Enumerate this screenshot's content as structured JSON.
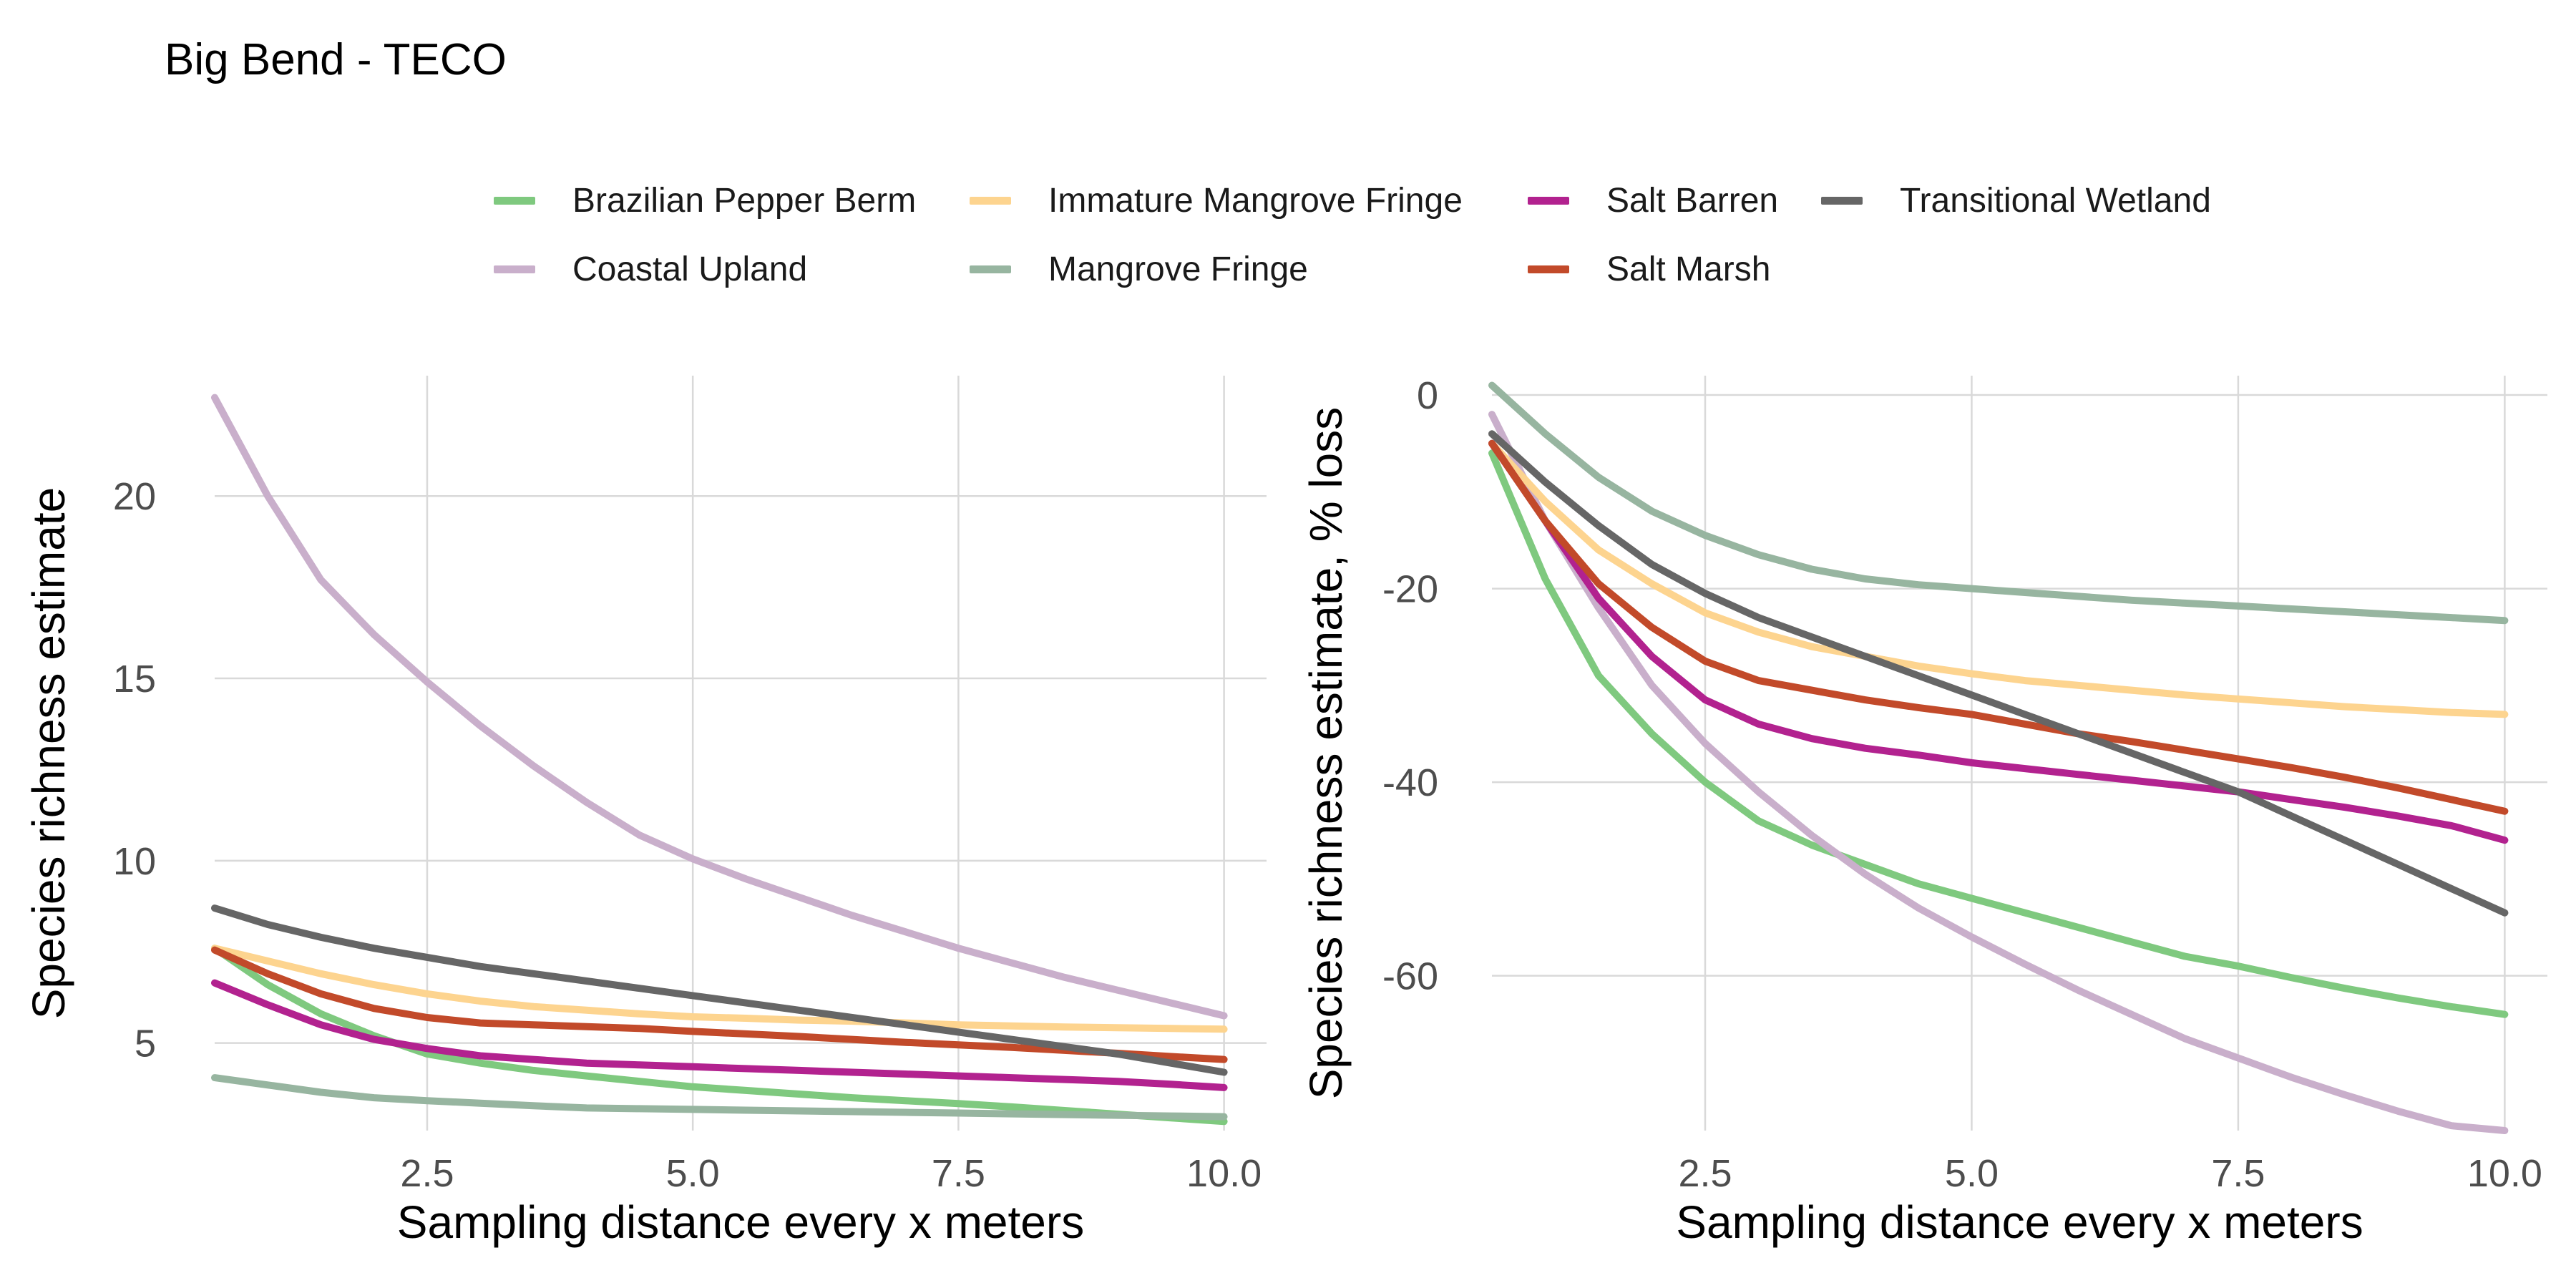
{
  "title": "Big Bend - TECO",
  "legend": [
    {
      "name": "Brazilian Pepper Berm",
      "color": "#7fc97f"
    },
    {
      "name": "Coastal Upland",
      "color": "#c9afcb"
    },
    {
      "name": "Immature Mangrove Fringe",
      "color": "#fdd48f"
    },
    {
      "name": "Mangrove Fringe",
      "color": "#97b5a0"
    },
    {
      "name": "Salt Barren",
      "color": "#b2228f"
    },
    {
      "name": "Salt Marsh",
      "color": "#c24a2a"
    },
    {
      "name": "Transitional Wetland",
      "color": "#666666"
    }
  ],
  "chart_data": [
    {
      "type": "line",
      "title": "",
      "xlabel": "Sampling distance every x meters",
      "ylabel": "Species richness estimate",
      "xlim": [
        0.5,
        10.4
      ],
      "ylim": [
        2.6,
        23.3
      ],
      "xticks": [
        2.5,
        5.0,
        7.5,
        10.0
      ],
      "xtick_labels": [
        "2.5",
        "5.0",
        "7.5",
        "10.0"
      ],
      "yticks": [
        5,
        10,
        15,
        20
      ],
      "ytick_labels": [
        "5",
        "10",
        "15",
        "20"
      ],
      "grid": true,
      "x": [
        0.5,
        1.0,
        1.5,
        2.0,
        2.5,
        3.0,
        3.5,
        4.0,
        4.5,
        5.0,
        5.5,
        6.0,
        6.5,
        7.0,
        7.5,
        8.0,
        8.5,
        9.0,
        9.5,
        10.0
      ],
      "series": [
        {
          "name": "Brazilian Pepper Berm",
          "color": "#7fc97f",
          "values": [
            7.6,
            6.6,
            5.8,
            5.2,
            4.7,
            4.45,
            4.25,
            4.1,
            3.95,
            3.8,
            3.7,
            3.6,
            3.5,
            3.42,
            3.34,
            3.25,
            3.15,
            3.05,
            2.95,
            2.85
          ]
        },
        {
          "name": "Coastal Upland",
          "color": "#c9afcb",
          "values": [
            22.7,
            20.0,
            17.7,
            16.2,
            14.9,
            13.7,
            12.6,
            11.6,
            10.7,
            10.05,
            9.5,
            9.0,
            8.5,
            8.05,
            7.6,
            7.2,
            6.8,
            6.45,
            6.1,
            5.75
          ]
        },
        {
          "name": "Immature Mangrove Fringe",
          "color": "#fdd48f",
          "values": [
            7.6,
            7.25,
            6.9,
            6.6,
            6.35,
            6.15,
            6.0,
            5.9,
            5.8,
            5.72,
            5.68,
            5.63,
            5.6,
            5.55,
            5.5,
            5.47,
            5.44,
            5.42,
            5.4,
            5.38
          ]
        },
        {
          "name": "Mangrove Fringe",
          "color": "#97b5a0",
          "values": [
            4.05,
            3.85,
            3.65,
            3.5,
            3.42,
            3.35,
            3.28,
            3.22,
            3.2,
            3.18,
            3.16,
            3.14,
            3.12,
            3.1,
            3.08,
            3.06,
            3.04,
            3.02,
            3.0,
            2.98
          ]
        },
        {
          "name": "Salt Barren",
          "color": "#b2228f",
          "values": [
            6.65,
            6.05,
            5.5,
            5.1,
            4.85,
            4.65,
            4.55,
            4.45,
            4.4,
            4.35,
            4.3,
            4.25,
            4.2,
            4.15,
            4.1,
            4.05,
            4.0,
            3.95,
            3.87,
            3.78
          ]
        },
        {
          "name": "Salt Marsh",
          "color": "#c24a2a",
          "values": [
            7.55,
            6.9,
            6.35,
            5.95,
            5.7,
            5.55,
            5.5,
            5.45,
            5.4,
            5.32,
            5.25,
            5.18,
            5.1,
            5.02,
            4.95,
            4.88,
            4.8,
            4.72,
            4.63,
            4.55
          ]
        },
        {
          "name": "Transitional Wetland",
          "color": "#666666",
          "values": [
            8.7,
            8.25,
            7.9,
            7.6,
            7.35,
            7.1,
            6.9,
            6.7,
            6.5,
            6.3,
            6.1,
            5.9,
            5.7,
            5.5,
            5.3,
            5.1,
            4.9,
            4.7,
            4.45,
            4.2
          ]
        }
      ]
    },
    {
      "type": "line",
      "title": "",
      "xlabel": "Sampling distance every x meters",
      "ylabel": "Species richness estimate, % loss",
      "xlim": [
        0.5,
        10.4
      ],
      "ylim": [
        -76,
        2
      ],
      "xticks": [
        2.5,
        5.0,
        7.5,
        10.0
      ],
      "xtick_labels": [
        "2.5",
        "5.0",
        "7.5",
        "10.0"
      ],
      "yticks": [
        0,
        -20,
        -40,
        -60
      ],
      "ytick_labels": [
        "0",
        "-20",
        "-40",
        "-60"
      ],
      "grid": true,
      "x": [
        0.5,
        1.0,
        1.5,
        2.0,
        2.5,
        3.0,
        3.5,
        4.0,
        4.5,
        5.0,
        5.5,
        6.0,
        6.5,
        7.0,
        7.5,
        8.0,
        8.5,
        9.0,
        9.5,
        10.0
      ],
      "series": [
        {
          "name": "Brazilian Pepper Berm",
          "color": "#7fc97f",
          "values": [
            -6,
            -19,
            -29,
            -35,
            -40,
            -44,
            -46.5,
            -48.5,
            -50.5,
            -52,
            -53.5,
            -55,
            -56.5,
            -58,
            -59,
            -60.2,
            -61.3,
            -62.3,
            -63.2,
            -64
          ]
        },
        {
          "name": "Coastal Upland",
          "color": "#c9afcb",
          "values": [
            -2,
            -13,
            -22,
            -30,
            -36,
            -41,
            -45.5,
            -49.5,
            -53,
            -56,
            -58.8,
            -61.5,
            -64,
            -66.5,
            -68.5,
            -70.5,
            -72.3,
            -74,
            -75.5,
            -76
          ]
        },
        {
          "name": "Immature Mangrove Fringe",
          "color": "#fdd48f",
          "values": [
            -5,
            -11,
            -16,
            -19.5,
            -22.5,
            -24.5,
            -26,
            -27,
            -28,
            -28.8,
            -29.5,
            -30,
            -30.5,
            -31,
            -31.4,
            -31.8,
            -32.2,
            -32.5,
            -32.8,
            -33
          ]
        },
        {
          "name": "Mangrove Fringe",
          "color": "#97b5a0",
          "values": [
            1,
            -4,
            -8.5,
            -12,
            -14.5,
            -16.5,
            -18,
            -19,
            -19.6,
            -20,
            -20.4,
            -20.8,
            -21.2,
            -21.5,
            -21.8,
            -22.1,
            -22.4,
            -22.7,
            -23,
            -23.3
          ]
        },
        {
          "name": "Salt Barren",
          "color": "#b2228f",
          "values": [
            -5,
            -13,
            -21,
            -27,
            -31.5,
            -34,
            -35.5,
            -36.5,
            -37.2,
            -38,
            -38.6,
            -39.2,
            -39.8,
            -40.4,
            -41,
            -41.8,
            -42.6,
            -43.5,
            -44.5,
            -46
          ]
        },
        {
          "name": "Salt Marsh",
          "color": "#c24a2a",
          "values": [
            -5,
            -13,
            -19.5,
            -24,
            -27.5,
            -29.5,
            -30.5,
            -31.5,
            -32.3,
            -33,
            -34,
            -35,
            -35.8,
            -36.7,
            -37.6,
            -38.5,
            -39.5,
            -40.6,
            -41.8,
            -43
          ]
        },
        {
          "name": "Transitional Wetland",
          "color": "#666666",
          "values": [
            -4,
            -9,
            -13.5,
            -17.5,
            -20.5,
            -23,
            -25,
            -27,
            -29,
            -31,
            -33,
            -35,
            -37,
            -39,
            -41,
            -43.5,
            -46,
            -48.5,
            -51,
            -53.5
          ]
        }
      ]
    }
  ]
}
